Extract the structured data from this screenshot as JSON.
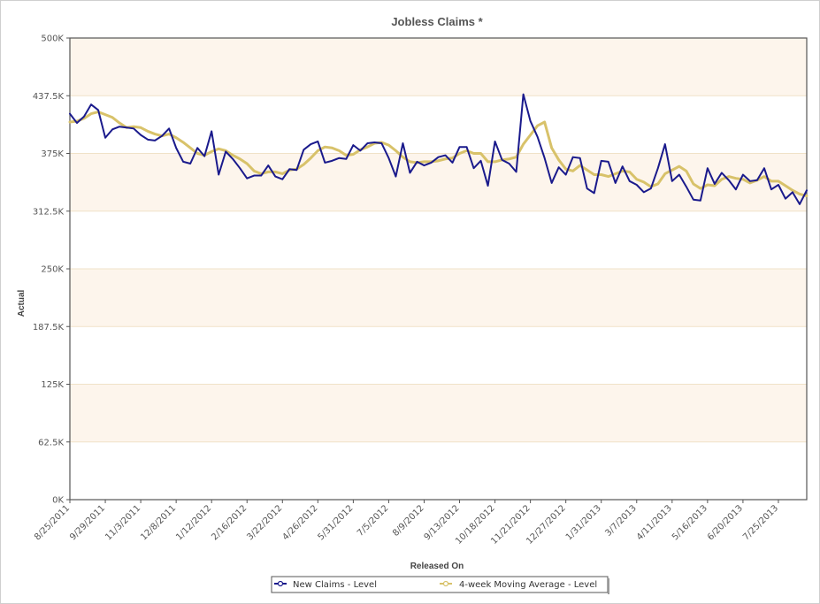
{
  "chart_data": {
    "type": "line",
    "title": "Jobless Claims *",
    "xlabel": "Released On",
    "ylabel": "Actual",
    "ylim": [
      0,
      500000
    ],
    "y_ticks": [
      "0K",
      "62.5K",
      "125K",
      "187.5K",
      "250K",
      "312.5K",
      "375K",
      "437.5K",
      "500K"
    ],
    "x_ticks": [
      "8/25/2011",
      "9/29/2011",
      "11/3/2011",
      "12/8/2011",
      "1/12/2012",
      "2/16/2012",
      "3/22/2012",
      "4/26/2012",
      "5/31/2012",
      "7/5/2012",
      "8/9/2012",
      "9/13/2012",
      "10/18/2012",
      "11/21/2012",
      "12/27/2012",
      "1/31/2013",
      "3/7/2013",
      "4/11/2013",
      "5/16/2013",
      "6/20/2013",
      "7/25/2013"
    ],
    "legend_position": "bottom",
    "colors": {
      "new_claims": "#1a1a8c",
      "moving_average": "#d8c26a",
      "band": "#fdf5ec",
      "plot_border": "#555555"
    },
    "series": [
      {
        "name": "New Claims - Level",
        "values": [
          418000,
          408000,
          415000,
          428000,
          422000,
          392000,
          401000,
          404000,
          403000,
          402000,
          395000,
          390000,
          389000,
          394000,
          402000,
          381000,
          366000,
          364000,
          381000,
          372000,
          399000,
          352000,
          377000,
          369000,
          359000,
          348000,
          351000,
          351000,
          362000,
          350000,
          347000,
          358000,
          357000,
          379000,
          385000,
          388000,
          365000,
          367000,
          370000,
          369000,
          384000,
          378000,
          386000,
          387000,
          386000,
          370000,
          350000,
          386000,
          354000,
          366000,
          362000,
          365000,
          371000,
          373000,
          365000,
          382000,
          382000,
          359000,
          367000,
          340000,
          388000,
          368000,
          364000,
          355000,
          439000,
          410000,
          393000,
          370000,
          343000,
          360000,
          352000,
          371000,
          370000,
          337000,
          332000,
          367000,
          366000,
          343000,
          361000,
          345000,
          341000,
          333000,
          337000,
          359000,
          385000,
          345000,
          352000,
          339000,
          325000,
          324000,
          359000,
          342000,
          354000,
          346000,
          336000,
          352000,
          345000,
          346000,
          359000,
          336000,
          341000,
          326000,
          333000,
          320000,
          335000
        ],
        "color": "#1a1a8c"
      },
      {
        "name": "4-week Moving Average - Level",
        "values": [
          409000,
          410000,
          413000,
          418000,
          420000,
          417000,
          414000,
          408000,
          403000,
          404000,
          403000,
          399000,
          396000,
          394000,
          396000,
          392000,
          387000,
          381000,
          375000,
          373000,
          377000,
          380000,
          378000,
          373000,
          369000,
          364000,
          356000,
          353000,
          355000,
          355000,
          353000,
          357000,
          358000,
          363000,
          370000,
          378000,
          382000,
          381000,
          378000,
          373000,
          374000,
          379000,
          382000,
          386000,
          387000,
          384000,
          378000,
          371000,
          366000,
          365000,
          366000,
          366000,
          367000,
          369000,
          370000,
          375000,
          378000,
          375000,
          375000,
          366000,
          366000,
          368000,
          369000,
          371000,
          385000,
          395000,
          405000,
          409000,
          381000,
          368000,
          358000,
          356000,
          362000,
          357000,
          352000,
          352000,
          350000,
          353000,
          356000,
          355000,
          347000,
          344000,
          339000,
          342000,
          353000,
          357000,
          361000,
          356000,
          342000,
          337000,
          341000,
          340000,
          347000,
          350000,
          348000,
          347000,
          343000,
          346000,
          350000,
          345000,
          345000,
          340000,
          335000,
          331000,
          329000
        ],
        "color": "#d8c26a"
      }
    ]
  }
}
